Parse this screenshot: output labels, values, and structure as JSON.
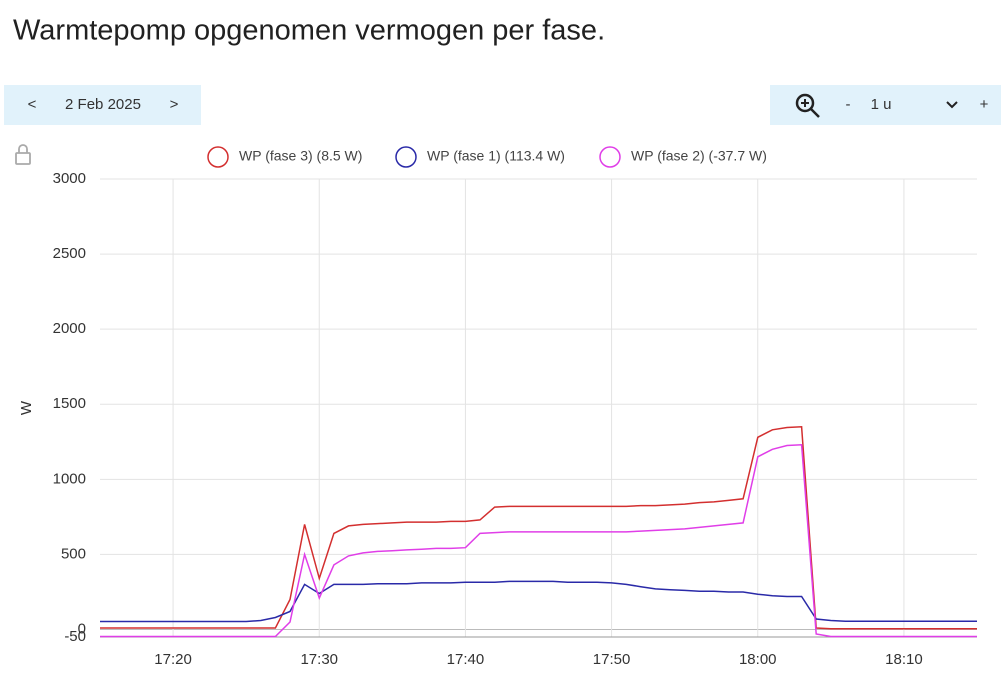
{
  "controls": {
    "prev": "<",
    "date": "2 Feb 2025",
    "next": ">",
    "zoom_out": "-",
    "span": "1 u",
    "zoom_in": "+"
  },
  "chart_data": {
    "type": "line",
    "title": "Warmtepomp opgenomen vermogen per fase.",
    "y_label": "W",
    "x": [
      "17:15",
      "17:16",
      "17:17",
      "17:18",
      "17:19",
      "17:20",
      "17:21",
      "17:22",
      "17:23",
      "17:24",
      "17:25",
      "17:26",
      "17:27",
      "17:28",
      "17:29",
      "17:30",
      "17:31",
      "17:32",
      "17:33",
      "17:34",
      "17:35",
      "17:36",
      "17:37",
      "17:38",
      "17:39",
      "17:40",
      "17:41",
      "17:42",
      "17:43",
      "17:44",
      "17:45",
      "17:46",
      "17:47",
      "17:48",
      "17:49",
      "17:50",
      "17:51",
      "17:52",
      "17:53",
      "17:54",
      "17:55",
      "17:56",
      "17:57",
      "17:58",
      "17:59",
      "18:00",
      "18:01",
      "18:02",
      "18:03",
      "18:04",
      "18:05",
      "18:06",
      "18:07",
      "18:08",
      "18:09",
      "18:10",
      "18:11",
      "18:12",
      "18:13",
      "18:14",
      "18:15"
    ],
    "xlim": [
      "17:15",
      "18:15"
    ],
    "xticks": [
      "17:20",
      "17:30",
      "17:40",
      "17:50",
      "18:00",
      "18:10"
    ],
    "ylim": [
      -50,
      3000
    ],
    "yticks": [
      -50,
      0,
      500,
      1000,
      1500,
      2000,
      2500,
      3000
    ],
    "grid": true,
    "series": [
      {
        "name": "WP (fase 3) (8.5 W)",
        "color": "#d32f2f",
        "values": [
          10,
          10,
          10,
          10,
          10,
          10,
          10,
          10,
          10,
          10,
          10,
          10,
          10,
          200,
          700,
          340,
          640,
          690,
          700,
          705,
          710,
          715,
          715,
          715,
          720,
          720,
          730,
          815,
          820,
          820,
          820,
          820,
          820,
          820,
          820,
          820,
          820,
          825,
          825,
          830,
          835,
          845,
          850,
          860,
          870,
          1280,
          1330,
          1345,
          1350,
          10,
          5,
          5,
          5,
          5,
          5,
          5,
          5,
          5,
          5,
          5,
          5
        ]
      },
      {
        "name": "WP (fase 1) (113.4 W)",
        "color": "#2a2aa8",
        "values": [
          53,
          53,
          53,
          53,
          53,
          53,
          53,
          53,
          53,
          53,
          53,
          60,
          80,
          120,
          300,
          240,
          300,
          300,
          300,
          305,
          305,
          305,
          310,
          310,
          310,
          315,
          315,
          315,
          320,
          320,
          320,
          320,
          315,
          315,
          315,
          310,
          300,
          285,
          270,
          265,
          260,
          255,
          255,
          250,
          250,
          235,
          225,
          220,
          220,
          70,
          60,
          55,
          55,
          55,
          55,
          55,
          55,
          55,
          55,
          55,
          55
        ]
      },
      {
        "name": "WP (fase 2) (-37.7 W)",
        "color": "#e03ee8",
        "values": [
          -47,
          -47,
          -47,
          -47,
          -47,
          -47,
          -47,
          -47,
          -47,
          -47,
          -47,
          -47,
          -47,
          50,
          500,
          210,
          430,
          490,
          510,
          520,
          525,
          530,
          535,
          540,
          540,
          545,
          640,
          645,
          650,
          650,
          650,
          650,
          650,
          650,
          650,
          650,
          650,
          655,
          660,
          665,
          670,
          680,
          690,
          700,
          710,
          1150,
          1200,
          1225,
          1230,
          -30,
          -47,
          -47,
          -47,
          -47,
          -47,
          -47,
          -47,
          -47,
          -47,
          -47,
          -47
        ]
      }
    ]
  }
}
